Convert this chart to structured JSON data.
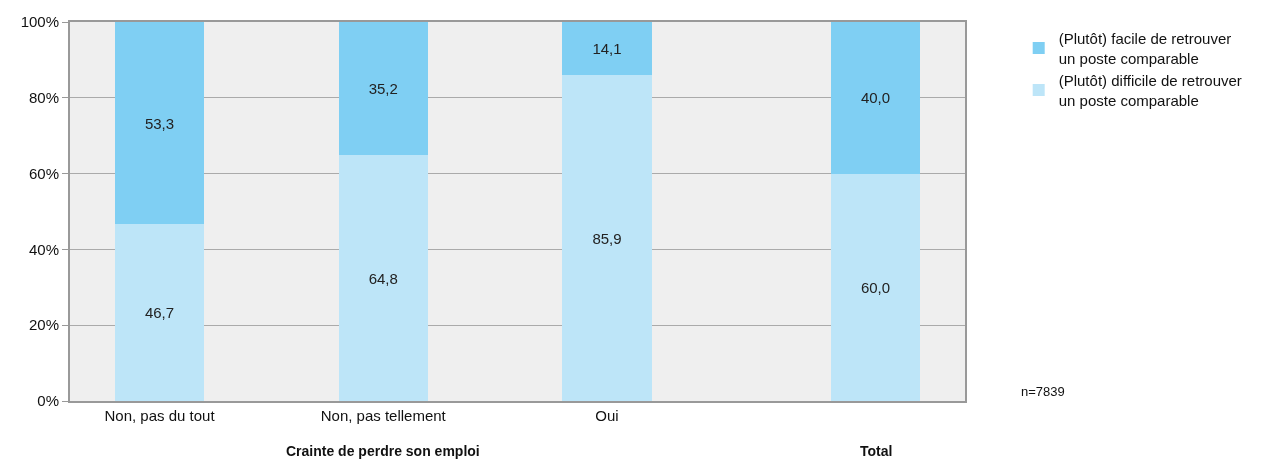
{
  "chart_data": {
    "type": "bar",
    "stacked": true,
    "categories": [
      "Non, pas du tout",
      "Non, pas tellement",
      "Oui",
      null
    ],
    "series": [
      {
        "name": "(Plutôt) difficile de retrouver\nun poste comparable",
        "color": "#bde5f8",
        "values": [
          46.7,
          64.8,
          85.9,
          60.0
        ],
        "value_labels": [
          "46,7",
          "64,8",
          "85,9",
          "60,0"
        ]
      },
      {
        "name": "(Plutôt) facile de retrouver\nun poste comparable",
        "color": "#7fcff3",
        "values": [
          53.3,
          35.2,
          14.1,
          40.0
        ],
        "value_labels": [
          "53,3",
          "35,2",
          "14,1",
          "40,0"
        ]
      }
    ],
    "xlabel": "Crainte de perdre son emploi",
    "annotations": [
      "Total",
      "n=7839"
    ],
    "ylim": [
      0,
      100
    ],
    "yticks": [
      {
        "value": 0,
        "label": "0%"
      },
      {
        "value": 20,
        "label": "20%"
      },
      {
        "value": 40,
        "label": "40%"
      },
      {
        "value": 60,
        "label": "60%"
      },
      {
        "value": 80,
        "label": "80%"
      },
      {
        "value": 100,
        "label": "100%"
      }
    ],
    "grid": "y",
    "legend": "top right"
  }
}
